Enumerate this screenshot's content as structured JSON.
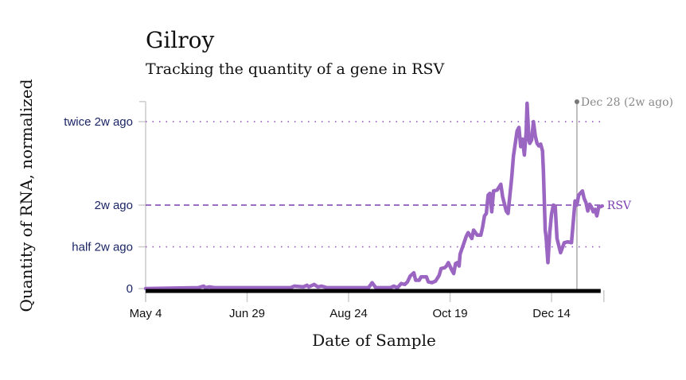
{
  "chart_data": {
    "type": "line",
    "title": "Gilroy",
    "subtitle": "Tracking the quantity of a gene in RSV",
    "xlabel": "Date of Sample",
    "ylabel": "Quantity of RNA, normalized",
    "x_unit": "days since May 4",
    "xlim": [
      0,
      252
    ],
    "ylim": [
      0,
      2.24
    ],
    "x_ticks": [
      {
        "day": 0,
        "label": "May 4"
      },
      {
        "day": 56,
        "label": "Jun 29"
      },
      {
        "day": 112,
        "label": "Aug 24"
      },
      {
        "day": 168,
        "label": "Oct 19"
      },
      {
        "day": 224,
        "label": "Dec 14"
      }
    ],
    "y_ticks": [
      {
        "value": 0,
        "label": "0"
      },
      {
        "value": 0.5,
        "label": "half 2w ago"
      },
      {
        "value": 1,
        "label": "2w ago"
      },
      {
        "value": 2,
        "label": "twice 2w ago"
      }
    ],
    "reference_line": {
      "day": 238,
      "label": "Dec 28 (2w ago)"
    },
    "series": [
      {
        "name": "RSV",
        "color": "#9b66c2",
        "points": [
          [
            0,
            0
          ],
          [
            29,
            0.01
          ],
          [
            32,
            0.03
          ],
          [
            33,
            0.01
          ],
          [
            35,
            0.02
          ],
          [
            38,
            0.01
          ],
          [
            80,
            0.01
          ],
          [
            82,
            0.03
          ],
          [
            87,
            0.02
          ],
          [
            89,
            0.04
          ],
          [
            90,
            0.02
          ],
          [
            93,
            0.05
          ],
          [
            95,
            0.02
          ],
          [
            97,
            0.03
          ],
          [
            100,
            0.01
          ],
          [
            123,
            0.01
          ],
          [
            125,
            0.07
          ],
          [
            127,
            0.01
          ],
          [
            135,
            0.01
          ],
          [
            137,
            0.03
          ],
          [
            139,
            0.01
          ],
          [
            141,
            0.06
          ],
          [
            143,
            0.05
          ],
          [
            144.5,
            0.08
          ],
          [
            146,
            0.15
          ],
          [
            148,
            0.19
          ],
          [
            149,
            0.1
          ],
          [
            151,
            0.1
          ],
          [
            152,
            0.14
          ],
          [
            155,
            0.14
          ],
          [
            156,
            0.08
          ],
          [
            158,
            0.07
          ],
          [
            160,
            0.09
          ],
          [
            162,
            0.16
          ],
          [
            163,
            0.24
          ],
          [
            165,
            0.25
          ],
          [
            166,
            0.27
          ],
          [
            167,
            0.31
          ],
          [
            169,
            0.22
          ],
          [
            170,
            0.18
          ],
          [
            171,
            0.3
          ],
          [
            172,
            0.31
          ],
          [
            173,
            0.27
          ],
          [
            173.5,
            0.41
          ],
          [
            177,
            0.63
          ],
          [
            178,
            0.67
          ],
          [
            180,
            0.6
          ],
          [
            181,
            0.7
          ],
          [
            183,
            0.64
          ],
          [
            185,
            0.64
          ],
          [
            186,
            0.74
          ],
          [
            187,
            0.87
          ],
          [
            188,
            0.9
          ],
          [
            189,
            1.12
          ],
          [
            190,
            1.14
          ],
          [
            191,
            0.92
          ],
          [
            192,
            1.17
          ],
          [
            194,
            1.18
          ],
          [
            196,
            1.25
          ],
          [
            197,
            1.1
          ],
          [
            199,
            0.93
          ],
          [
            200,
            0.9
          ],
          [
            202,
            1.33
          ],
          [
            203,
            1.59
          ],
          [
            205,
            1.89
          ],
          [
            206,
            1.93
          ],
          [
            207,
            1.7
          ],
          [
            208,
            1.79
          ],
          [
            209,
            1.6
          ],
          [
            210,
            1.88
          ],
          [
            210.5,
            2.22
          ],
          [
            211.5,
            1.78
          ],
          [
            212,
            1.74
          ],
          [
            213,
            1.78
          ],
          [
            214,
            2.0
          ],
          [
            215,
            1.83
          ],
          [
            216,
            1.74
          ],
          [
            217,
            1.71
          ],
          [
            218,
            1.73
          ],
          [
            219,
            1.65
          ],
          [
            219.5,
            1.41
          ],
          [
            220.5,
            0.7
          ],
          [
            221,
            0.62
          ],
          [
            222,
            0.31
          ],
          [
            223,
            0.67
          ],
          [
            224,
            0.89
          ],
          [
            225,
            1.0
          ],
          [
            226,
            0.99
          ],
          [
            227,
            0.6
          ],
          [
            229,
            0.43
          ],
          [
            231,
            0.55
          ],
          [
            233,
            0.56
          ],
          [
            235,
            0.55
          ],
          [
            237,
            1.05
          ],
          [
            238,
            1.0
          ],
          [
            239,
            1.12
          ],
          [
            241,
            1.17
          ],
          [
            242,
            1.08
          ],
          [
            243,
            1.03
          ],
          [
            244,
            0.93
          ],
          [
            245,
            1.01
          ],
          [
            246,
            0.98
          ],
          [
            247,
            0.92
          ],
          [
            248,
            0.95
          ],
          [
            249,
            0.87
          ],
          [
            250,
            0.98
          ],
          [
            251,
            0.98
          ],
          [
            252,
            0.99
          ]
        ]
      }
    ],
    "grid": false,
    "legend": "end-of-line label"
  }
}
